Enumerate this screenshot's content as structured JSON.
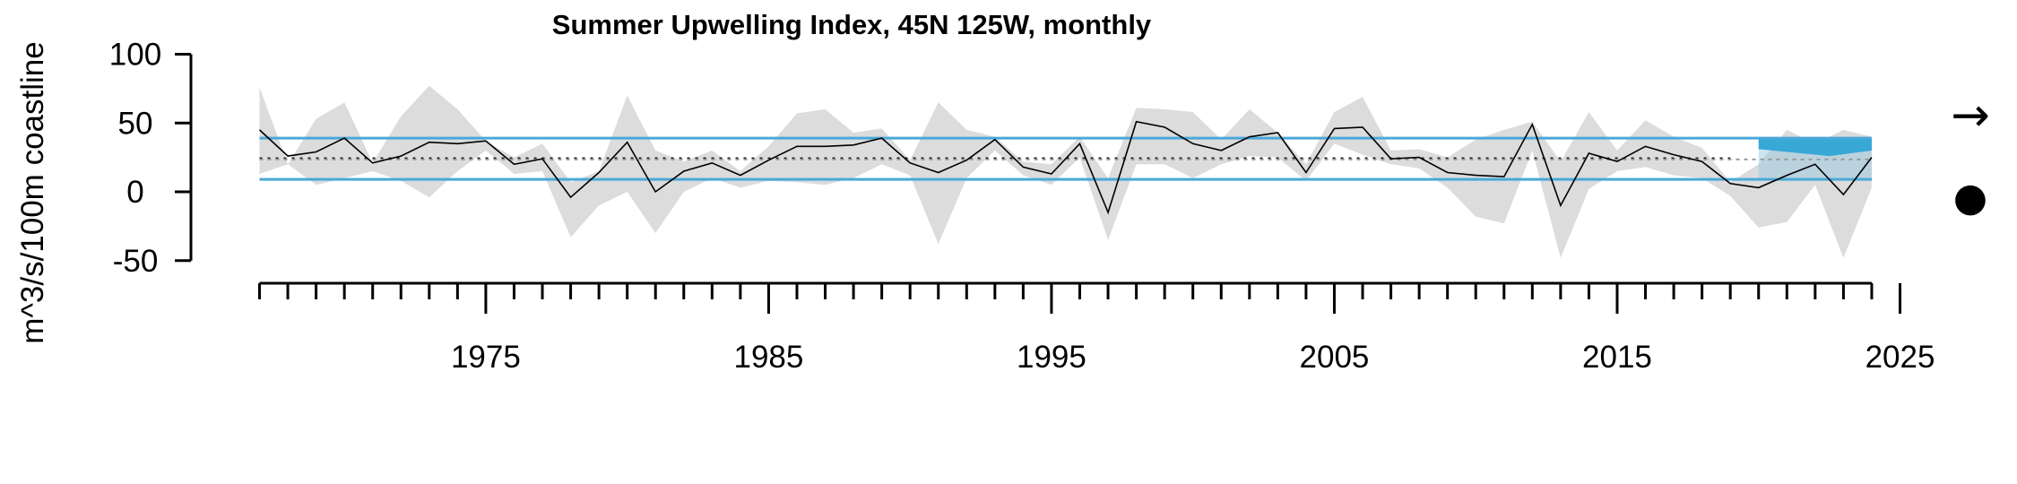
{
  "chart_data": {
    "type": "line",
    "title": "Summer Upwelling Index, 45N 125W, monthly",
    "ylabel": "m^3/s/100m coastline",
    "xlabel": "",
    "xlim": [
      1967,
      2025
    ],
    "ylim": [
      -50,
      100
    ],
    "y_ticks": [
      100,
      50,
      0,
      -50
    ],
    "x_ticks": [
      1975,
      1985,
      1995,
      2005,
      2015,
      2025
    ],
    "x_minor_step": 1,
    "mean": 24,
    "sd_band": [
      9,
      39
    ],
    "recent_period": [
      2020,
      2024
    ],
    "trend_symbol": "→",
    "status_symbol": "●",
    "colors": {
      "series": "#000000",
      "band": "#dcdcdc",
      "sd_lines": "#4aa8d8",
      "recent_fill": "#38a8d6",
      "recent_box": "#8fc6e0",
      "mean_line": "#000000",
      "recent_mean": "#999999"
    },
    "x": [
      1967,
      1968,
      1969,
      1970,
      1971,
      1972,
      1973,
      1974,
      1975,
      1976,
      1977,
      1978,
      1979,
      1980,
      1981,
      1982,
      1983,
      1984,
      1985,
      1986,
      1987,
      1988,
      1989,
      1990,
      1991,
      1992,
      1993,
      1994,
      1995,
      1996,
      1997,
      1998,
      1999,
      2000,
      2001,
      2002,
      2003,
      2004,
      2005,
      2006,
      2007,
      2008,
      2009,
      2010,
      2011,
      2012,
      2013,
      2014,
      2015,
      2016,
      2017,
      2018,
      2019,
      2020,
      2021,
      2022,
      2023,
      2024
    ],
    "series": [
      {
        "values": [
          45,
          26,
          29,
          39,
          21,
          26,
          36,
          35,
          37,
          20,
          24,
          -4,
          14,
          36,
          0,
          15,
          21,
          12,
          23,
          33,
          33,
          34,
          39,
          21,
          14,
          23,
          38,
          18,
          13,
          35,
          -15,
          51,
          47,
          35,
          30,
          40,
          43,
          14,
          46,
          47,
          24,
          25,
          14,
          12,
          11,
          49,
          -10,
          28,
          22,
          33,
          27,
          22,
          6,
          3,
          12,
          20,
          -2,
          25
        ],
        "lower": [
          13,
          20,
          5,
          10,
          15,
          8,
          -4,
          15,
          30,
          13,
          15,
          -33,
          -10,
          0,
          -30,
          0,
          10,
          3,
          8,
          7,
          5,
          10,
          20,
          12,
          -38,
          10,
          30,
          12,
          5,
          25,
          -35,
          20,
          20,
          10,
          20,
          26,
          25,
          8,
          35,
          27,
          20,
          17,
          3,
          -18,
          -23,
          30,
          -48,
          2,
          15,
          18,
          12,
          10,
          -3,
          -26,
          -22,
          5,
          -48,
          3
        ],
        "upper": [
          76,
          20,
          53,
          65,
          21,
          55,
          77,
          60,
          37,
          25,
          35,
          7,
          15,
          70,
          30,
          22,
          30,
          15,
          33,
          57,
          60,
          43,
          46,
          23,
          65,
          45,
          40,
          22,
          20,
          40,
          10,
          61,
          60,
          58,
          38,
          60,
          43,
          20,
          58,
          69,
          30,
          31,
          25,
          38,
          45,
          51,
          22,
          58,
          30,
          52,
          40,
          32,
          7,
          20,
          45,
          35,
          45,
          40
        ]
      }
    ]
  }
}
